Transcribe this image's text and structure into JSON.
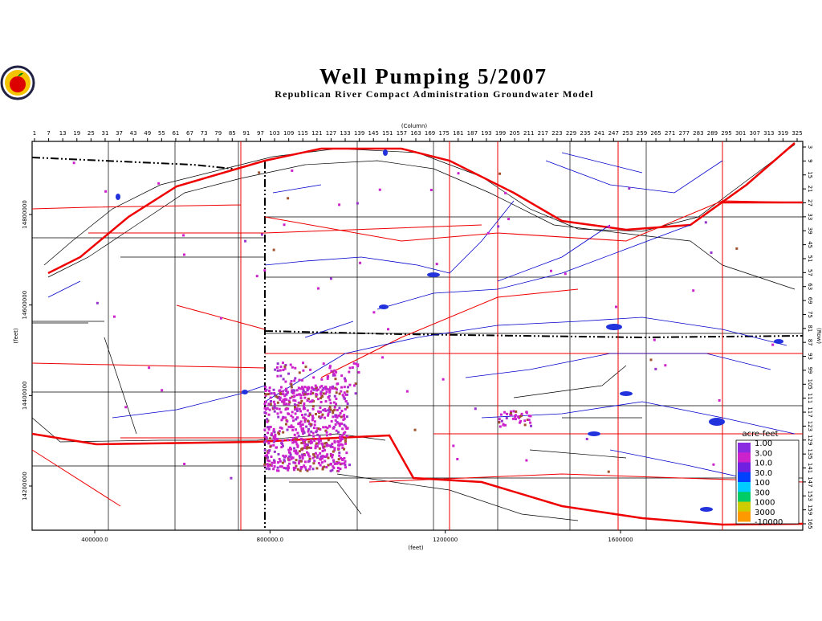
{
  "title": "Well Pumping 5/2007",
  "subtitle": "Republican River Compact Administration Groundwater Model",
  "column_axis_label": "(Column)",
  "row_axis_label": "(Row)",
  "x_axis_label": "(feet)",
  "y_axis_label": "(feet)",
  "column_ticks": [
    1,
    7,
    13,
    19,
    25,
    31,
    37,
    43,
    49,
    55,
    61,
    67,
    73,
    79,
    85,
    91,
    97,
    103,
    109,
    115,
    121,
    127,
    133,
    139,
    145,
    151,
    157,
    163,
    169,
    175,
    181,
    187,
    193,
    199,
    205,
    211,
    217,
    223,
    229,
    235,
    241,
    247,
    253,
    259,
    265,
    271,
    277,
    283,
    289,
    295,
    301,
    307,
    313,
    319,
    325
  ],
  "row_ticks": [
    3,
    9,
    15,
    21,
    27,
    33,
    39,
    45,
    51,
    57,
    63,
    69,
    75,
    81,
    87,
    93,
    99,
    105,
    111,
    117,
    123,
    129,
    135,
    141,
    147,
    153,
    159,
    165
  ],
  "y_ticks": [
    14800000,
    14600000,
    14400000,
    14200000
  ],
  "x_ticks": [
    "400000.0",
    "800000.0",
    "1200000",
    "1600000"
  ],
  "legend": {
    "title": "acre-feet",
    "labels": [
      "1.00",
      "3.00",
      "10.0",
      "30.0",
      "100",
      "300",
      "1000",
      "3000",
      "-10000"
    ]
  }
}
